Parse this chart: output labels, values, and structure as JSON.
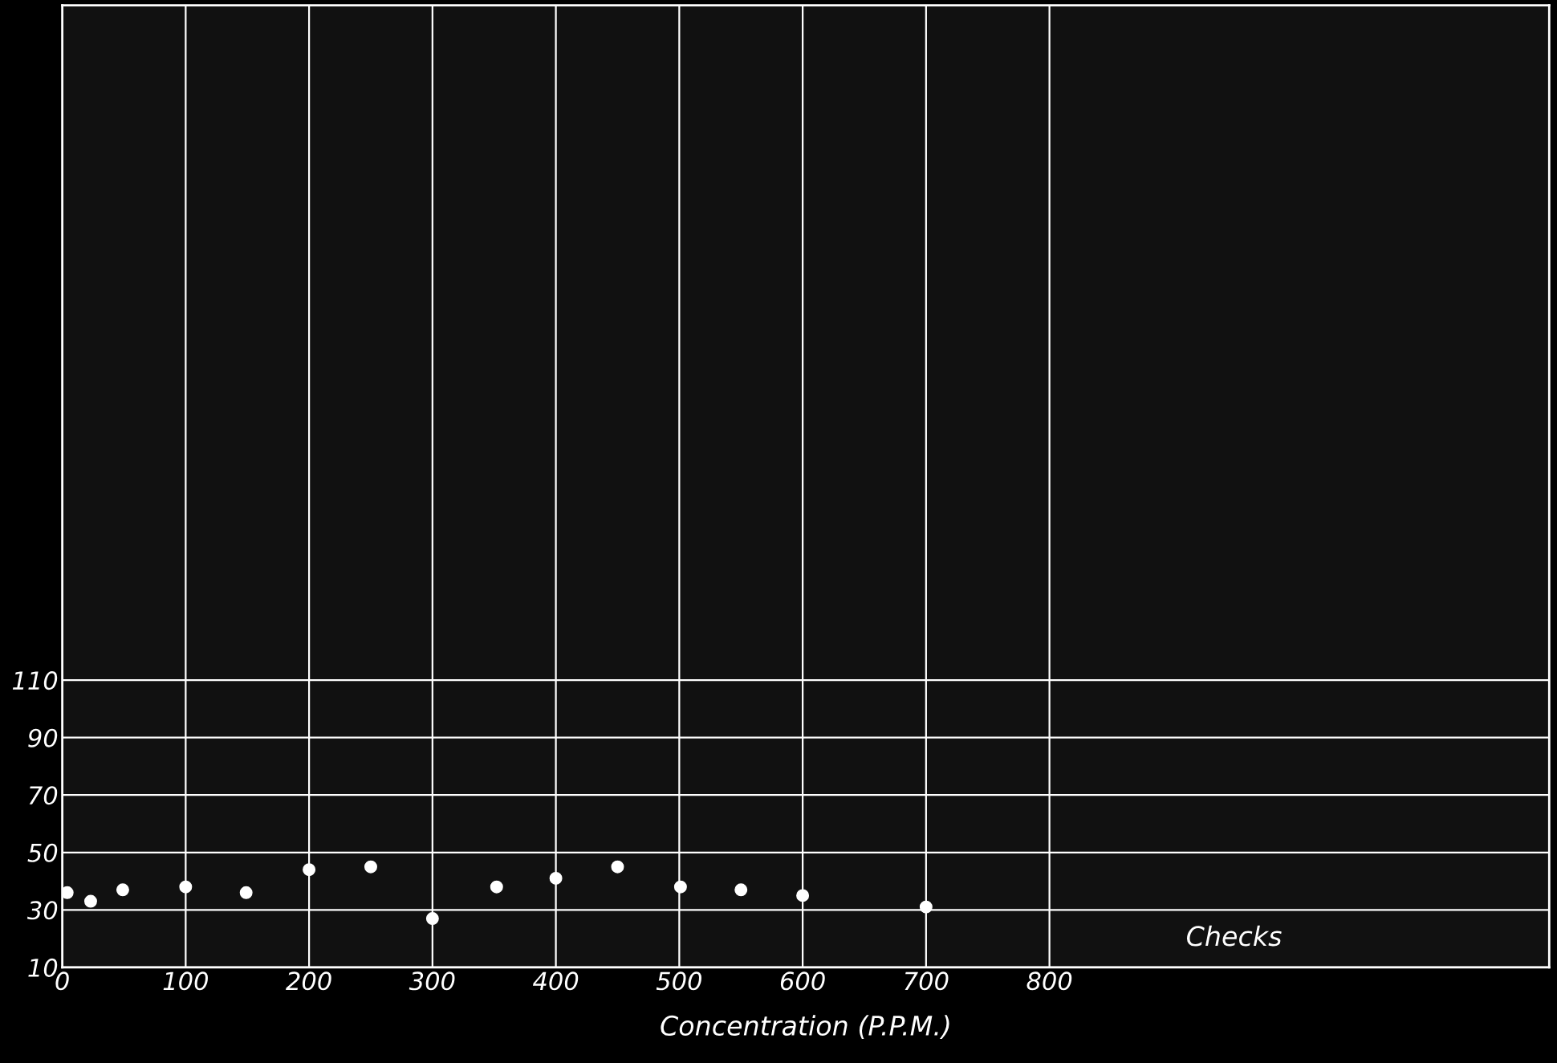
{
  "chart_data": {
    "type": "scatter",
    "xlabel": "Concentration (P.P.M.)",
    "x": [
      4,
      23,
      49,
      100,
      149,
      200,
      250,
      300,
      352,
      400,
      450,
      501,
      550,
      600,
      700
    ],
    "series": [
      {
        "color": "#ffffff",
        "values": [
          36,
          33,
          37,
          38,
          36,
          44,
          45,
          27,
          38,
          41,
          45,
          38,
          37,
          35,
          31
        ]
      }
    ],
    "xlim": [
      0,
      1205
    ],
    "ylim": [
      10,
      345
    ],
    "xticks": [
      0,
      100,
      200,
      300,
      400,
      500,
      600,
      700,
      800
    ],
    "yticks": [
      10,
      30,
      50,
      70,
      90,
      110
    ],
    "grid": true,
    "marker": "circle",
    "annotations": [
      "Checks"
    ]
  }
}
